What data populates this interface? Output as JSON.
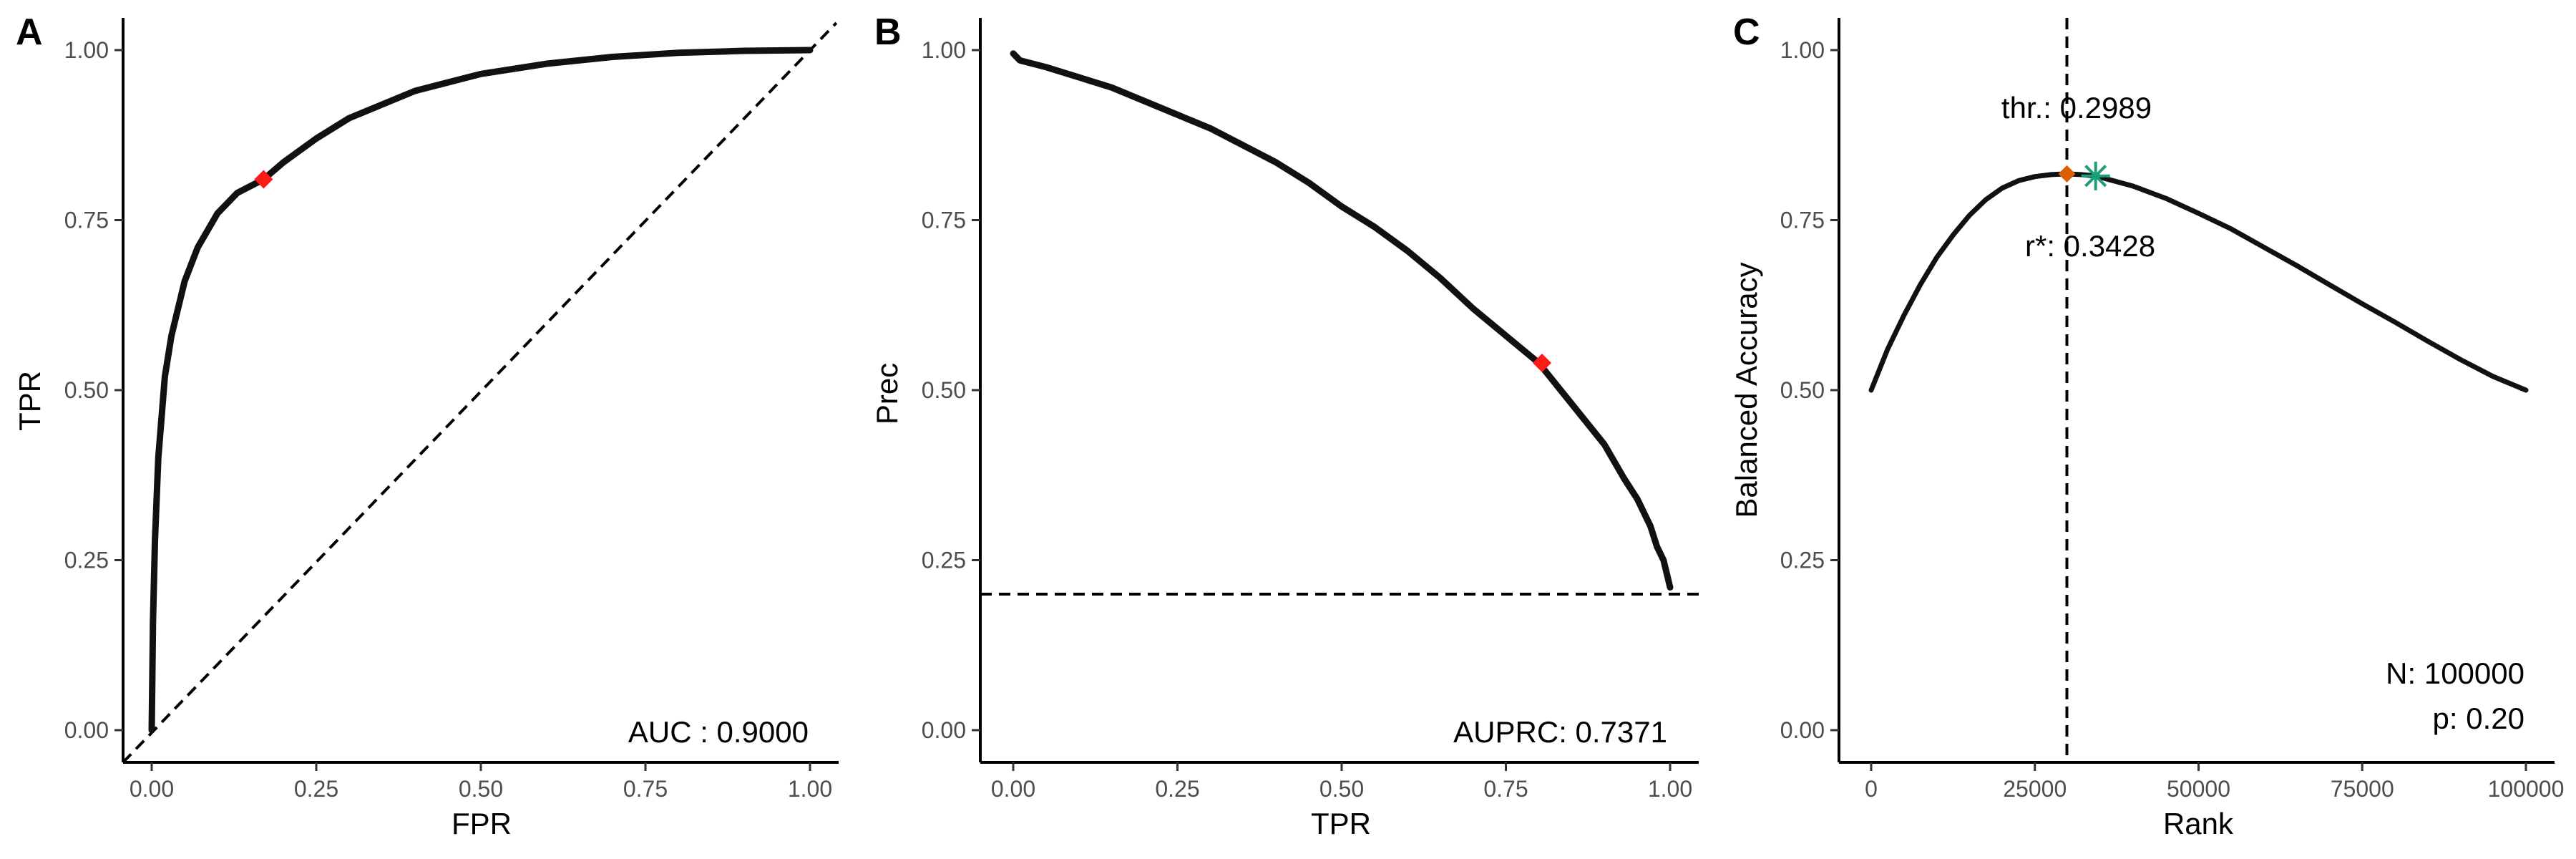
{
  "colors": {
    "curve": "#111111",
    "optimal_point": "#ff1a1a",
    "threshold_point": "#d95f02",
    "best_point": "#1b9e77"
  },
  "chart_data": [
    {
      "panel": "A",
      "type": "line",
      "xlabel": "FPR",
      "ylabel": "TPR",
      "xlim": [
        0,
        1
      ],
      "ylim": [
        0,
        1
      ],
      "x_ticks": [
        "0.00",
        "0.25",
        "0.50",
        "0.75",
        "1.00"
      ],
      "y_ticks": [
        "0.00",
        "0.25",
        "0.50",
        "0.75",
        "1.00"
      ],
      "grid": false,
      "series": [
        {
          "x": [
            0,
            0.002,
            0.005,
            0.01,
            0.02,
            0.03,
            0.05,
            0.07,
            0.1,
            0.13,
            0.17,
            0.2,
            0.25,
            0.3,
            0.35,
            0.4,
            0.5,
            0.6,
            0.7,
            0.8,
            0.9,
            1.0
          ],
          "y": [
            0,
            0.16,
            0.28,
            0.4,
            0.52,
            0.58,
            0.66,
            0.71,
            0.76,
            0.79,
            0.81,
            0.835,
            0.87,
            0.9,
            0.92,
            0.94,
            0.965,
            0.98,
            0.99,
            0.996,
            0.999,
            1.0
          ]
        }
      ],
      "reference_line": {
        "type": "diagonal",
        "from": [
          0,
          0
        ],
        "to": [
          1,
          1
        ]
      },
      "highlight_point": {
        "x": 0.17,
        "y": 0.81,
        "shape": "diamond"
      },
      "annotation": "AUC : 0.9000"
    },
    {
      "panel": "B",
      "type": "line",
      "xlabel": "TPR",
      "ylabel": "Prec",
      "xlim": [
        0,
        1
      ],
      "ylim": [
        0,
        1
      ],
      "x_ticks": [
        "0.00",
        "0.25",
        "0.50",
        "0.75",
        "1.00"
      ],
      "y_ticks": [
        "0.00",
        "0.25",
        "0.50",
        "0.75",
        "1.00"
      ],
      "grid": false,
      "series": [
        {
          "x": [
            0,
            0.01,
            0.05,
            0.1,
            0.15,
            0.2,
            0.25,
            0.3,
            0.35,
            0.4,
            0.45,
            0.5,
            0.55,
            0.6,
            0.65,
            0.7,
            0.75,
            0.8,
            0.85,
            0.9,
            0.93,
            0.95,
            0.97,
            0.98,
            0.99,
            0.995,
            1.0
          ],
          "y": [
            0.995,
            0.985,
            0.975,
            0.96,
            0.945,
            0.925,
            0.905,
            0.885,
            0.86,
            0.835,
            0.805,
            0.77,
            0.74,
            0.705,
            0.665,
            0.62,
            0.58,
            0.54,
            0.48,
            0.42,
            0.37,
            0.34,
            0.3,
            0.27,
            0.25,
            0.23,
            0.21
          ]
        }
      ],
      "reference_line": {
        "type": "horizontal",
        "y": 0.2
      },
      "highlight_point": {
        "x": 0.805,
        "y": 0.54,
        "shape": "diamond"
      },
      "annotation": "AUPRC: 0.7371"
    },
    {
      "panel": "C",
      "type": "line",
      "xlabel": "Rank",
      "ylabel": "Balanced Accuracy",
      "xlim": [
        0,
        100000
      ],
      "ylim": [
        0,
        1
      ],
      "x_ticks": [
        "0",
        "25000",
        "50000",
        "75000",
        "100000"
      ],
      "y_ticks": [
        "0.00",
        "0.25",
        "0.50",
        "0.75",
        "1.00"
      ],
      "grid": false,
      "series": [
        {
          "x": [
            0,
            2500,
            5000,
            7500,
            10000,
            12500,
            15000,
            17500,
            20000,
            22500,
            25000,
            27500,
            29890,
            32000,
            34280,
            40000,
            45000,
            50000,
            55000,
            60000,
            65000,
            70000,
            75000,
            80000,
            85000,
            90000,
            95000,
            100000
          ],
          "y": [
            0.5,
            0.56,
            0.61,
            0.655,
            0.695,
            0.728,
            0.757,
            0.78,
            0.797,
            0.808,
            0.814,
            0.817,
            0.818,
            0.817,
            0.815,
            0.8,
            0.782,
            0.76,
            0.737,
            0.71,
            0.683,
            0.655,
            0.627,
            0.6,
            0.572,
            0.545,
            0.52,
            0.5
          ]
        }
      ],
      "reference_line": {
        "type": "vertical",
        "x": 29890
      },
      "threshold_point": {
        "x": 29890,
        "y": 0.818,
        "shape": "diamond"
      },
      "best_point": {
        "x": 34280,
        "y": 0.815,
        "shape": "asterisk"
      },
      "annotations": {
        "threshold": "thr.: 0.2989",
        "rstar": "r*: 0.3428",
        "n": "N: 100000",
        "p": "p: 0.20"
      }
    }
  ]
}
